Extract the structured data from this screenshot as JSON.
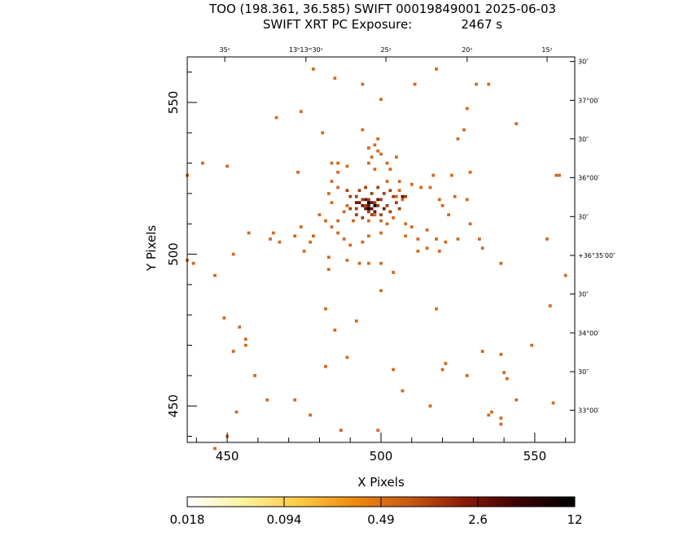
{
  "header": {
    "title_line1": "TOO (198.361, 36.585) SWIFT 00019849001 2025-06-03",
    "title_line2_left": "SWIFT XRT PC Exposure:",
    "title_line2_right": "2467 s"
  },
  "chart_data": {
    "type": "heatmap",
    "xlabel": "X Pixels",
    "ylabel": "Y Pixels",
    "xlim": [
      437,
      563
    ],
    "ylim": [
      438,
      565
    ],
    "x_ticks": [
      450,
      500,
      550
    ],
    "y_ticks": [
      450,
      500,
      550
    ],
    "ra_ticks": [
      {
        "label": "35ˢ",
        "x": 449.2
      },
      {
        "label": "13ʰ13ᵐ30ˢ",
        "x": 475.6
      },
      {
        "label": "25ˢ",
        "x": 501.6
      },
      {
        "label": "20ˢ",
        "x": 528.0
      },
      {
        "label": "15ˢ",
        "x": 554.0
      }
    ],
    "dec_ticks": [
      {
        "label": "30″",
        "y": 563.5
      },
      {
        "label": "37°00′",
        "y": 550.7
      },
      {
        "label": "30″",
        "y": 538.0
      },
      {
        "label": "36°00′",
        "y": 525.2
      },
      {
        "label": "30″",
        "y": 512.4
      },
      {
        "label": "+36°35′00″",
        "y": 499.6
      },
      {
        "label": "30″",
        "y": 486.9
      },
      {
        "label": "34°00′",
        "y": 474.1
      },
      {
        "label": "30″",
        "y": 461.3
      },
      {
        "label": "33°00′",
        "y": 448.6
      }
    ],
    "colorbar": {
      "labels": [
        "0.018",
        "0.094",
        "0.49",
        "2.6",
        "12"
      ],
      "scale": "log",
      "colors": [
        "#ffffff",
        "#fff3a0",
        "#ffcb45",
        "#f08a10",
        "#c85a10",
        "#8b1a08",
        "#3a0000",
        "#000000"
      ]
    },
    "pixel_colors": {
      "low": "#d2691e",
      "mid": "#a0400f",
      "high": "#6b1206",
      "peak": "#000000"
    },
    "counts_low": [
      [
        466,
        545
      ],
      [
        474,
        547
      ],
      [
        478,
        561
      ],
      [
        485,
        558
      ],
      [
        494,
        556
      ],
      [
        500,
        551
      ],
      [
        511,
        556
      ],
      [
        518,
        561
      ],
      [
        531,
        556
      ],
      [
        535,
        556
      ],
      [
        528,
        548
      ],
      [
        544,
        543
      ],
      [
        527,
        541
      ],
      [
        525,
        538
      ],
      [
        481,
        540
      ],
      [
        494,
        541
      ],
      [
        499,
        538
      ],
      [
        498,
        536
      ],
      [
        497,
        532
      ],
      [
        496,
        535
      ],
      [
        499,
        534
      ],
      [
        500,
        533
      ],
      [
        505,
        532
      ],
      [
        502,
        530
      ],
      [
        503,
        528
      ],
      [
        496,
        530
      ],
      [
        498,
        528
      ],
      [
        489,
        529
      ],
      [
        486,
        530
      ],
      [
        484,
        530
      ],
      [
        486,
        527
      ],
      [
        484,
        524
      ],
      [
        502,
        524
      ],
      [
        506,
        524
      ],
      [
        510,
        523
      ],
      [
        513,
        522
      ],
      [
        506,
        521
      ],
      [
        505,
        519
      ],
      [
        507,
        518
      ],
      [
        516,
        522
      ],
      [
        529,
        527
      ],
      [
        523,
        526
      ],
      [
        517,
        526
      ],
      [
        558,
        526
      ],
      [
        442,
        530
      ],
      [
        450,
        529
      ],
      [
        473,
        527
      ],
      [
        437,
        526
      ],
      [
        524,
        519
      ],
      [
        519,
        518
      ],
      [
        520,
        516
      ],
      [
        522,
        513
      ],
      [
        528,
        518
      ],
      [
        529,
        510
      ],
      [
        525,
        505
      ],
      [
        532,
        505
      ],
      [
        533,
        502
      ],
      [
        539,
        497
      ],
      [
        557,
        526
      ],
      [
        554,
        505
      ],
      [
        560,
        493
      ],
      [
        555,
        483
      ],
      [
        486,
        522
      ],
      [
        483,
        520
      ],
      [
        484,
        517
      ],
      [
        488,
        514
      ],
      [
        480,
        513
      ],
      [
        482,
        511
      ],
      [
        484,
        509
      ],
      [
        486,
        511
      ],
      [
        478,
        506
      ],
      [
        477,
        504
      ],
      [
        472,
        506
      ],
      [
        467,
        504
      ],
      [
        465,
        507
      ],
      [
        474,
        509
      ],
      [
        486,
        507
      ],
      [
        488,
        505
      ],
      [
        490,
        503
      ],
      [
        494,
        504
      ],
      [
        496,
        506
      ],
      [
        500,
        507
      ],
      [
        502,
        510
      ],
      [
        504,
        512
      ],
      [
        508,
        510
      ],
      [
        510,
        509
      ],
      [
        508,
        506
      ],
      [
        512,
        505
      ],
      [
        512,
        501
      ],
      [
        515,
        508
      ],
      [
        521,
        504
      ],
      [
        515,
        502
      ],
      [
        518,
        505
      ],
      [
        519,
        501
      ],
      [
        498,
        513
      ],
      [
        496,
        511
      ],
      [
        500,
        511
      ],
      [
        491,
        511
      ],
      [
        489,
        516
      ],
      [
        489,
        498
      ],
      [
        493,
        497
      ],
      [
        496,
        497
      ],
      [
        500,
        497
      ],
      [
        504,
        494
      ],
      [
        483,
        495
      ],
      [
        483,
        499
      ],
      [
        475,
        501
      ],
      [
        464,
        505
      ],
      [
        457,
        507
      ],
      [
        452,
        500
      ],
      [
        446,
        493
      ],
      [
        449,
        479
      ],
      [
        454,
        476
      ],
      [
        456,
        472
      ],
      [
        456,
        470
      ],
      [
        452,
        468
      ],
      [
        459,
        460
      ],
      [
        463,
        452
      ],
      [
        472,
        452
      ],
      [
        482,
        482
      ],
      [
        485,
        475
      ],
      [
        489,
        466
      ],
      [
        482,
        463
      ],
      [
        492,
        478
      ],
      [
        500,
        488
      ],
      [
        504,
        462
      ],
      [
        507,
        455
      ],
      [
        518,
        482
      ],
      [
        520,
        462
      ],
      [
        516,
        450
      ],
      [
        521,
        464
      ],
      [
        528,
        460
      ],
      [
        533,
        468
      ],
      [
        536,
        448
      ],
      [
        539,
        446
      ],
      [
        539,
        444
      ],
      [
        540,
        461
      ],
      [
        541,
        459
      ],
      [
        544,
        452
      ],
      [
        549,
        470
      ],
      [
        556,
        451
      ],
      [
        539,
        467
      ],
      [
        535,
        447
      ],
      [
        487,
        442
      ],
      [
        499,
        442
      ],
      [
        477,
        447
      ],
      [
        453,
        448
      ],
      [
        450,
        440
      ],
      [
        439,
        497
      ],
      [
        437,
        498
      ],
      [
        446,
        436
      ]
    ],
    "counts_mid": [
      [
        490,
        519
      ],
      [
        492,
        519
      ],
      [
        494,
        518
      ],
      [
        496,
        518
      ],
      [
        497,
        520
      ],
      [
        498,
        517
      ],
      [
        499,
        516
      ],
      [
        490,
        515
      ],
      [
        492,
        515
      ],
      [
        492,
        513
      ],
      [
        494,
        512
      ],
      [
        496,
        514
      ],
      [
        497,
        513
      ],
      [
        500,
        518
      ],
      [
        502,
        516
      ],
      [
        503,
        514
      ],
      [
        504,
        519
      ],
      [
        501,
        520
      ],
      [
        489,
        521
      ],
      [
        493,
        521
      ],
      [
        495,
        522
      ],
      [
        499,
        522
      ],
      [
        503,
        521
      ],
      [
        505,
        517
      ],
      [
        500,
        513
      ],
      [
        506,
        515
      ],
      [
        495,
        516
      ],
      [
        508,
        519
      ]
    ],
    "counts_high": [
      [
        493,
        517
      ],
      [
        494,
        516
      ],
      [
        495,
        515
      ],
      [
        496,
        516
      ],
      [
        497,
        515
      ],
      [
        498,
        514
      ],
      [
        495,
        518
      ],
      [
        497,
        517
      ],
      [
        499,
        518
      ],
      [
        501,
        515
      ],
      [
        492,
        517
      ],
      [
        507,
        519
      ]
    ],
    "counts_peak": [
      [
        496,
        517
      ],
      [
        496,
        515
      ],
      [
        498,
        516
      ]
    ]
  }
}
